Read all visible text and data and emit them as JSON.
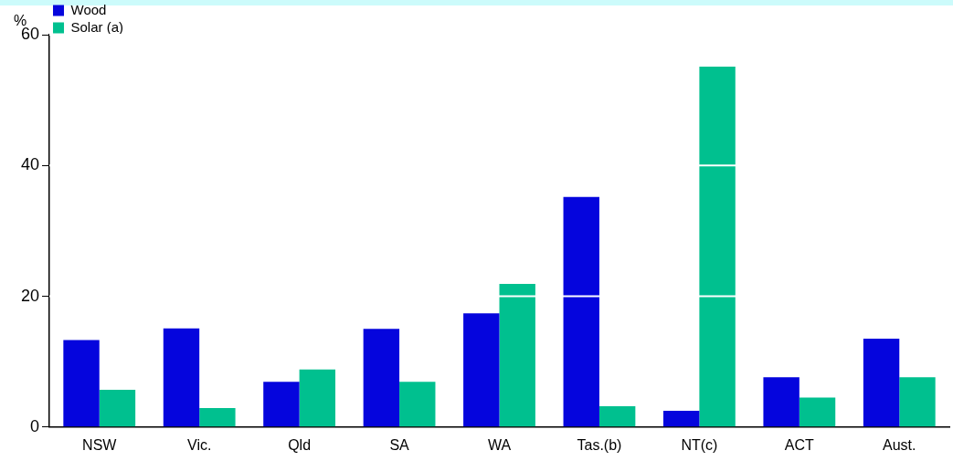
{
  "chart_data": {
    "type": "bar",
    "ylabel": "%",
    "categories": [
      "NSW",
      "Vic.",
      "Qld",
      "SA",
      "WA",
      "Tas.(b)",
      "NT(c)",
      "ACT",
      "Aust."
    ],
    "series": [
      {
        "name": "Wood",
        "color": "#0505dd",
        "values": [
          13.3,
          15.1,
          6.9,
          15.0,
          17.4,
          35.2,
          2.5,
          7.6,
          13.5
        ]
      },
      {
        "name": "Solar (a)",
        "color": "#00c08f",
        "values": [
          5.7,
          2.9,
          8.8,
          6.9,
          21.9,
          3.2,
          55.1,
          4.5,
          7.6
        ]
      }
    ],
    "ylim": [
      0,
      60
    ],
    "yticks": [
      0,
      20,
      40,
      60
    ],
    "grid": "y",
    "legend": "top left"
  }
}
